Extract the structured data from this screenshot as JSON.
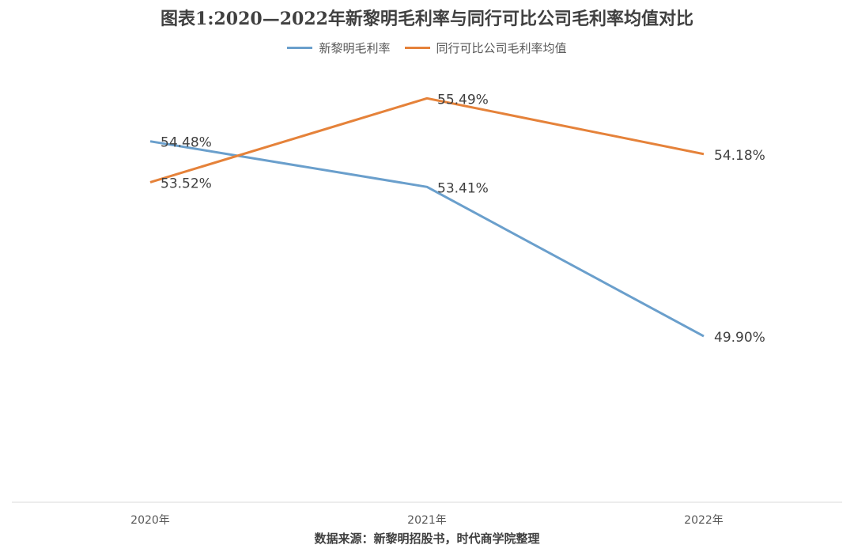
{
  "chart_data": {
    "type": "line",
    "title": "图表1:2020—2022年新黎明毛利率与同行可比公司毛利率均值对比",
    "categories": [
      "2020年",
      "2021年",
      "2022年"
    ],
    "series": [
      {
        "name": "新黎明毛利率",
        "color": "#6a9fcc",
        "values": [
          54.48,
          53.41,
          49.9
        ],
        "labels": [
          "54.48%",
          "53.41%",
          "49.90%"
        ]
      },
      {
        "name": "同行可比公司毛利率均值",
        "color": "#e5823a",
        "values": [
          53.52,
          55.49,
          54.18
        ],
        "labels": [
          "53.52%",
          "55.49%",
          "54.18%"
        ]
      }
    ],
    "ylim": [
      46.0,
      56.5
    ],
    "grid": false,
    "legend_position": "top"
  },
  "source_note": "数据来源：新黎明招股书，时代商学院整理"
}
